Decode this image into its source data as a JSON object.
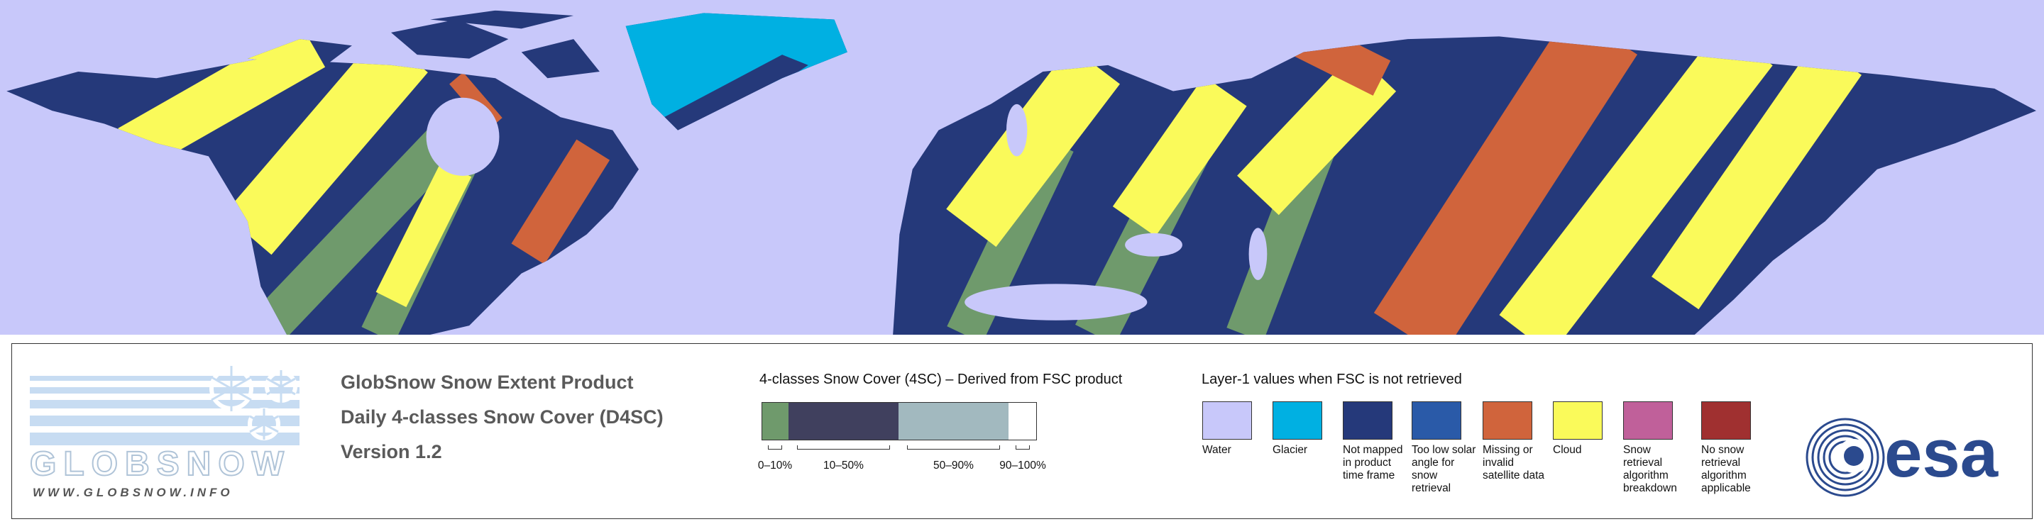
{
  "logo": {
    "name": "GLOBSNOW",
    "url": "WWW.GLOBSNOW.INFO"
  },
  "header": {
    "lines": [
      "GlobSnow Snow Extent Product",
      "Daily 4-classes Snow Cover (D4SC)",
      "Version 1.2"
    ]
  },
  "snow_cover_scale": {
    "title": "4-classes Snow Cover (4SC) – Derived from FSC product",
    "classes": [
      {
        "label": "0–10%",
        "color": "#6f9a6c"
      },
      {
        "label": "10–50%",
        "color": "#40405e"
      },
      {
        "label": "50–90%",
        "color": "#a2b9bf"
      },
      {
        "label": "90–100%",
        "color": "#ffffff"
      }
    ]
  },
  "layer1_legend": {
    "title": "Layer-1 values when FSC is not retrieved",
    "items": [
      {
        "label": "Water",
        "color": "#c8c8fa"
      },
      {
        "label": "Glacier",
        "color": "#00b0e2"
      },
      {
        "label": "Not mapped in product time frame",
        "color": "#25397a"
      },
      {
        "label": "Too low solar angle for snow retrieval",
        "color": "#2a5aa8"
      },
      {
        "label": "Missing or invalid satellite data",
        "color": "#d0643c"
      },
      {
        "label": "Cloud",
        "color": "#fafa5a"
      },
      {
        "label": "Snow retrieval algorithm breakdown",
        "color": "#c0609a"
      },
      {
        "label": "No snow retrieval algorithm applicable",
        "color": "#a03030"
      }
    ]
  },
  "agency_logo": {
    "text": "esa"
  }
}
